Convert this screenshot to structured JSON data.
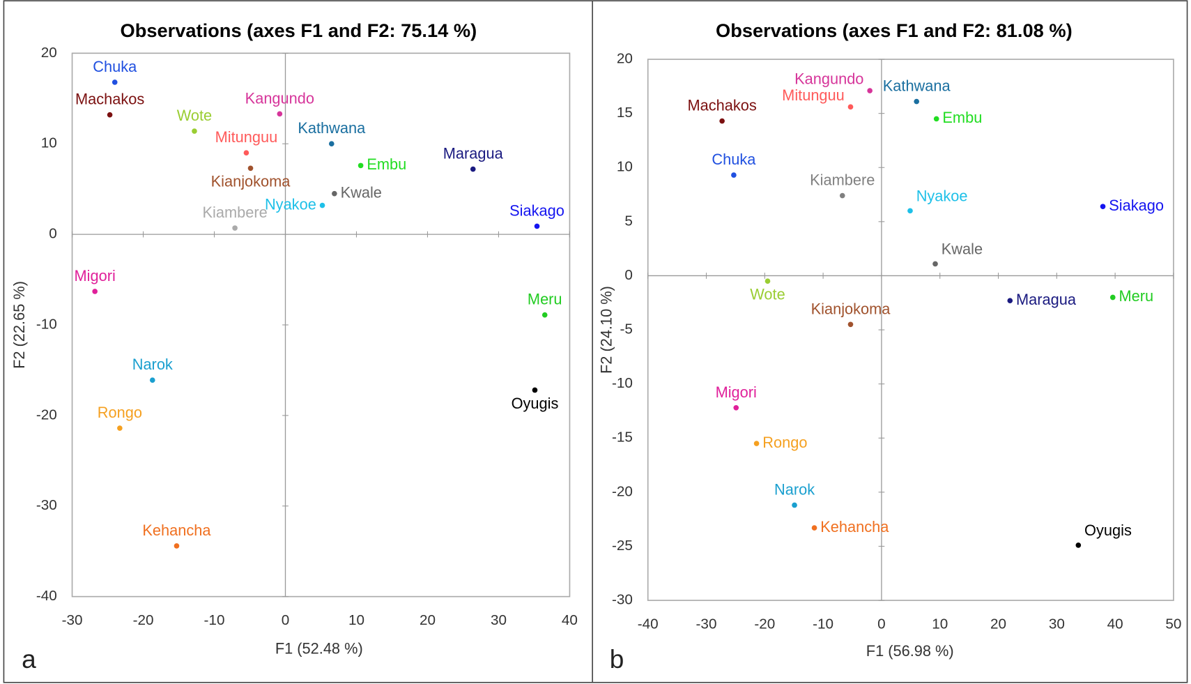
{
  "chart_data": [
    {
      "type": "scatter",
      "title": "Observations (axes F1 and F2: 75.14 %)",
      "x_label": "F1 (52.48 %)",
      "y_label": "F2 (22.65 %)",
      "panel_label": "a",
      "xlim": [
        -30,
        40
      ],
      "ylim": [
        -40,
        20
      ],
      "xticks": [
        -30,
        -20,
        -10,
        0,
        10,
        20,
        30,
        40
      ],
      "yticks": [
        -40,
        -30,
        -20,
        -10,
        0,
        10,
        20
      ],
      "point_labels": [
        "Chuka",
        "Machakos",
        "Wote",
        "Mitunguu",
        "Kianjokoma",
        "Kangundo",
        "Kathwana",
        "Embu",
        "Kwale",
        "Nyakoe",
        "Kiambere",
        "Maragua",
        "Siakago",
        "Migori",
        "Meru",
        "Narok",
        "Oyugis",
        "Rongo",
        "Kehancha"
      ],
      "x": [
        -24.0,
        -24.7,
        -12.8,
        -5.5,
        -4.9,
        -0.8,
        6.5,
        10.6,
        6.9,
        5.2,
        -7.1,
        26.4,
        35.4,
        -26.8,
        36.5,
        -18.7,
        35.1,
        -23.3,
        -15.3
      ],
      "values": [
        16.8,
        13.2,
        11.4,
        9.0,
        7.3,
        13.3,
        10.0,
        7.6,
        4.5,
        3.2,
        0.7,
        7.2,
        0.9,
        -6.3,
        -8.9,
        -16.1,
        -17.2,
        -21.4,
        -34.4
      ],
      "colors": [
        "#2050e0",
        "#7b1010",
        "#9acd32",
        "#ff5a5a",
        "#a0522d",
        "#d6359a",
        "#1a6fa0",
        "#22dd22",
        "#666666",
        "#1ec0e8",
        "#aaaaaa",
        "#1a1a80",
        "#1414f0",
        "#e0209a",
        "#22cc22",
        "#1a9fcf",
        "#000000",
        "#f5a020",
        "#f07020"
      ]
    },
    {
      "type": "scatter",
      "title": "Observations (axes F1 and F2: 81.08 %)",
      "x_label": "F1 (56.98 %)",
      "y_label": "F2 (24.10 %)",
      "panel_label": "b",
      "xlim": [
        -40,
        50
      ],
      "ylim": [
        -30,
        20
      ],
      "xticks": [
        -40,
        -30,
        -20,
        -10,
        0,
        10,
        20,
        30,
        40,
        50
      ],
      "yticks": [
        -30,
        -25,
        -20,
        -15,
        -10,
        -5,
        0,
        5,
        10,
        15,
        20
      ],
      "point_labels": [
        "Machakos",
        "Kangundo",
        "Mitunguu",
        "Kathwana",
        "Embu",
        "Chuka",
        "Kiambere",
        "Nyakoe",
        "Siakago",
        "Kwale",
        "Wote",
        "Maragua",
        "Meru",
        "Kianjokoma",
        "Migori",
        "Rongo",
        "Narok",
        "Kehancha",
        "Oyugis"
      ],
      "x": [
        -27.3,
        -2.0,
        -5.3,
        6.0,
        9.4,
        -25.3,
        -6.7,
        4.9,
        37.9,
        9.2,
        -19.5,
        22.0,
        39.6,
        -5.3,
        -24.9,
        -21.4,
        -14.9,
        -11.5,
        33.7
      ],
      "values": [
        14.3,
        17.1,
        15.6,
        16.1,
        14.5,
        9.3,
        7.4,
        6.0,
        6.4,
        1.1,
        -0.5,
        -2.3,
        -2.0,
        -4.5,
        -12.2,
        -15.5,
        -21.2,
        -23.3,
        -24.9
      ],
      "colors": [
        "#7b1010",
        "#d6359a",
        "#ff5a5a",
        "#1a6fa0",
        "#22dd22",
        "#2050e0",
        "#808080",
        "#1ec0e8",
        "#1414f0",
        "#666666",
        "#9acd32",
        "#1a1a80",
        "#22cc22",
        "#a0522d",
        "#e0209a",
        "#f5a020",
        "#1a9fcf",
        "#f07020",
        "#000000"
      ]
    }
  ]
}
